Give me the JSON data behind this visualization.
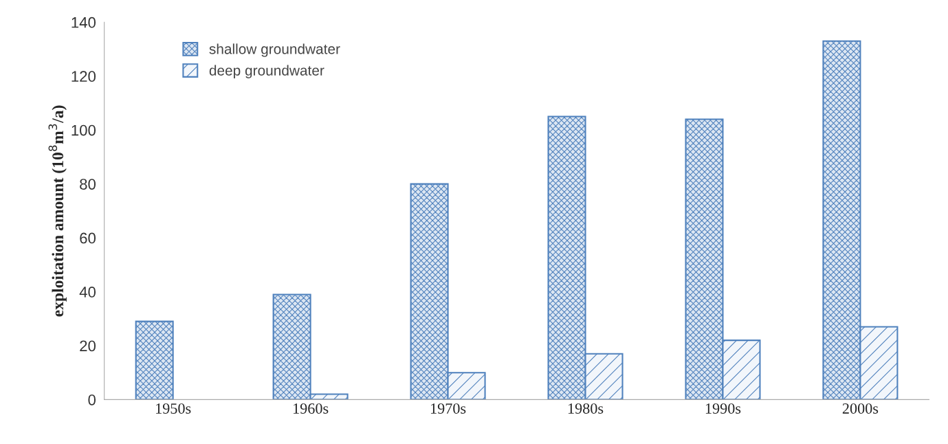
{
  "chart_data": {
    "type": "bar",
    "ylabel": "exploitation amount (10$^{8}$m$^{3}$/a)",
    "categories": [
      "1950s",
      "1960s",
      "1970s",
      "1980s",
      "1990s",
      "2000s"
    ],
    "series": [
      {
        "name": "shallow groundwater",
        "color": "#4f81bd",
        "values": [
          29,
          39,
          80,
          105,
          104,
          133
        ]
      },
      {
        "name": "deep groundwater",
        "color": "#4f81bd",
        "values": [
          null,
          2,
          10,
          17,
          22,
          27
        ]
      }
    ],
    "ylim": [
      0,
      140
    ],
    "yticks": [
      0,
      20,
      40,
      60,
      80,
      100,
      120,
      140
    ],
    "grid": false,
    "legend": "top left"
  }
}
